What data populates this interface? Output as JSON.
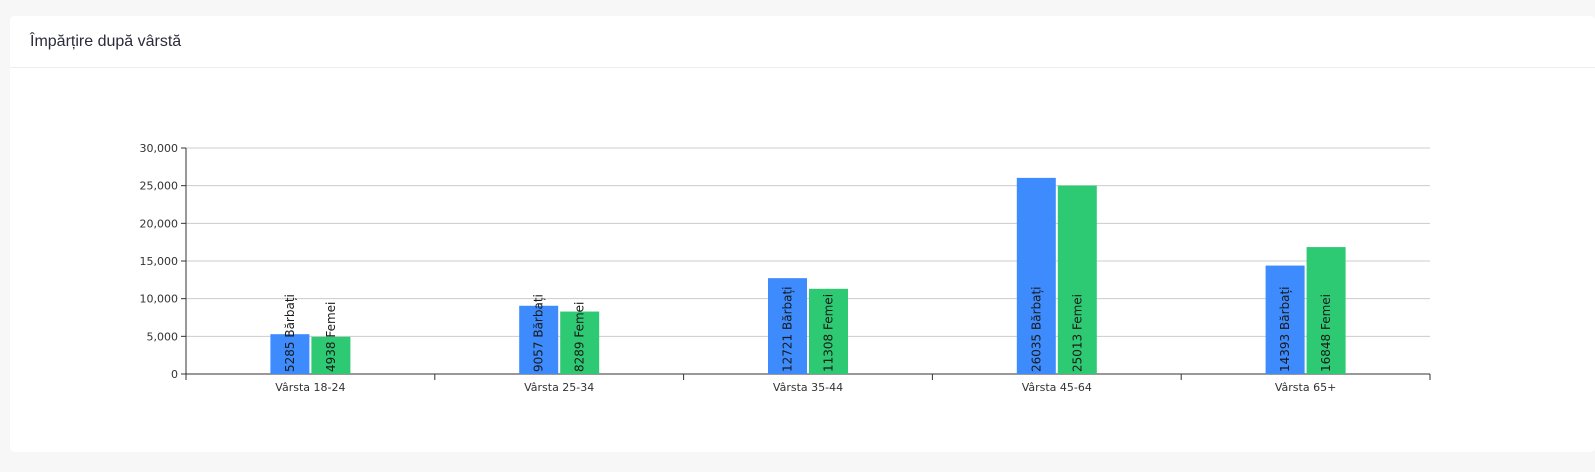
{
  "card": {
    "title": "Împărțire după vârstă"
  },
  "chart_data": {
    "type": "bar",
    "categories": [
      "Vârsta 18-24",
      "Vârsta 25-34",
      "Vârsta 35-44",
      "Vârsta 45-64",
      "Vârsta 65+"
    ],
    "series": [
      {
        "name": "Bărbați",
        "color": "#3d8bfd",
        "values": [
          5285,
          9057,
          12721,
          26035,
          14393
        ]
      },
      {
        "name": "Femei",
        "color": "#2ec973",
        "values": [
          4938,
          8289,
          11308,
          25013,
          16848
        ]
      }
    ],
    "ylim": [
      0,
      30000
    ],
    "yticks": [
      0,
      5000,
      10000,
      15000,
      20000,
      25000,
      30000
    ],
    "ytick_labels": [
      "0",
      "5,000",
      "10,000",
      "15,000",
      "20,000",
      "25,000",
      "30,000"
    ],
    "data_labels": [
      [
        "5285 Bărbați",
        "9057 Bărbați",
        "12721 Bărbați",
        "26035 Bărbați",
        "14393 Bărbați"
      ],
      [
        "4938 Femei",
        "8289 Femei",
        "11308 Femei",
        "25013 Femei",
        "16848 Femei"
      ]
    ],
    "grid": true,
    "legend": "none",
    "title": "",
    "xlabel": "",
    "ylabel": ""
  }
}
